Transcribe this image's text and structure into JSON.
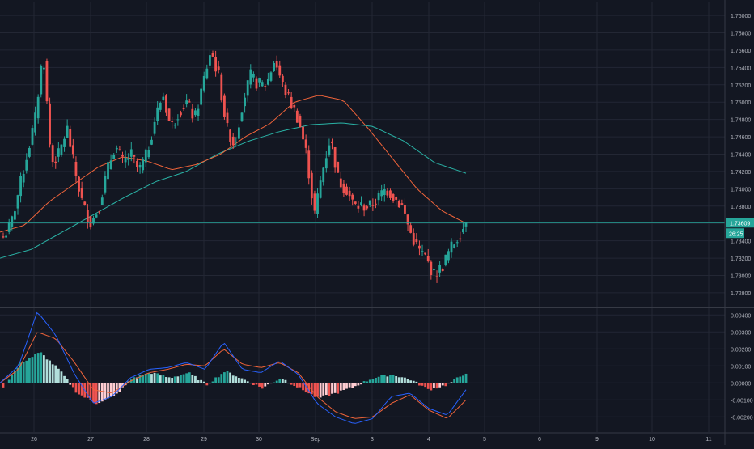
{
  "colors": {
    "background": "#131722",
    "grid": "#232734",
    "axis_text": "#b2b5be",
    "up": "#26a69a",
    "down": "#ef5350",
    "ma_fast": "#f0643a",
    "ma_slow": "#2ab3a6",
    "macd_line": "#2962ff",
    "signal_line": "#f0643a",
    "hist_pos": "#26a69a",
    "hist_pos_light": "#b2dfdb",
    "hist_neg": "#ef5350",
    "hist_neg_light": "#ffcdd2",
    "price_line": "#26a69a",
    "separator": "#363a45"
  },
  "chart_data": [
    {
      "type": "candlestick",
      "title": "",
      "ylim": [
        1.7265,
        1.7615
      ],
      "y_ticks": [
        "1.76000",
        "1.75800",
        "1.75600",
        "1.75400",
        "1.75200",
        "1.75000",
        "1.74800",
        "1.74600",
        "1.74400",
        "1.74200",
        "1.74000",
        "1.73800",
        "1.73600",
        "1.73400",
        "1.73200",
        "1.73000",
        "1.72800"
      ],
      "x_ticks": [
        "26",
        "27",
        "28",
        "29",
        "30",
        "Sep",
        "3",
        "4",
        "5",
        "6",
        "9",
        "10",
        "11"
      ],
      "current_price": "1.73609",
      "countdown": "26:25",
      "ohlc_anchors": [
        [
          1.7345,
          1.7344
        ],
        [
          1.735,
          1.736
        ],
        [
          1.738,
          1.74
        ],
        [
          1.742,
          1.744
        ],
        [
          1.744,
          1.748
        ],
        [
          1.75,
          1.756
        ],
        [
          1.747,
          1.743
        ],
        [
          1.746,
          1.744
        ],
        [
          1.745,
          1.747
        ],
        [
          1.744,
          1.742
        ],
        [
          1.74,
          1.738
        ],
        [
          1.738,
          1.736
        ],
        [
          1.736,
          1.738
        ],
        [
          1.739,
          1.742
        ],
        [
          1.742,
          1.745
        ],
        [
          1.744,
          1.743
        ],
        [
          1.743,
          1.744
        ],
        [
          1.743,
          1.742
        ],
        [
          1.743,
          1.744
        ],
        [
          1.744,
          1.748
        ],
        [
          1.748,
          1.751
        ],
        [
          1.749,
          1.747
        ],
        [
          1.748,
          1.749
        ],
        [
          1.749,
          1.75
        ],
        [
          1.749,
          1.748
        ],
        [
          1.75,
          1.752
        ],
        [
          1.753,
          1.756
        ],
        [
          1.757,
          1.753
        ],
        [
          1.75,
          1.747
        ],
        [
          1.747,
          1.745
        ],
        [
          1.747,
          1.75
        ],
        [
          1.751,
          1.753
        ],
        [
          1.752,
          1.752
        ],
        [
          1.75,
          1.752
        ],
        [
          1.753,
          1.755
        ],
        [
          1.753,
          1.752
        ],
        [
          1.752,
          1.75
        ],
        [
          1.751,
          1.748
        ],
        [
          1.747,
          1.744
        ],
        [
          1.743,
          1.737
        ],
        [
          1.74,
          1.742
        ],
        [
          1.745,
          1.746
        ],
        [
          1.743,
          1.741
        ],
        [
          1.742,
          1.74
        ],
        [
          1.74,
          1.738
        ],
        [
          1.738,
          1.738
        ],
        [
          1.739,
          1.738
        ],
        [
          1.738,
          1.739
        ],
        [
          1.739,
          1.74
        ],
        [
          1.741,
          1.739
        ],
        [
          1.739,
          1.738
        ],
        [
          1.737,
          1.735
        ],
        [
          1.735,
          1.733
        ],
        [
          1.734,
          1.732
        ],
        [
          1.732,
          1.73
        ],
        [
          1.73,
          1.731
        ],
        [
          1.732,
          1.733
        ],
        [
          1.733,
          1.7345
        ],
        [
          1.735,
          1.7361
        ]
      ],
      "ma_fast_anchors": [
        1.735,
        1.7358,
        1.7385,
        1.7405,
        1.7425,
        1.7437,
        1.7432,
        1.7422,
        1.7428,
        1.744,
        1.746,
        1.7475,
        1.75,
        1.7508,
        1.7502,
        1.747,
        1.7435,
        1.74,
        1.7375,
        1.736
      ],
      "ma_slow_anchors": [
        1.732,
        1.733,
        1.735,
        1.737,
        1.739,
        1.7408,
        1.742,
        1.744,
        1.7455,
        1.7466,
        1.7474,
        1.7476,
        1.7472,
        1.7455,
        1.743,
        1.7418
      ]
    },
    {
      "type": "macd",
      "ylim": [
        -0.0027,
        0.0043
      ],
      "y_ticks": [
        "0.00400",
        "0.00300",
        "0.00200",
        "0.00100",
        "0.00000",
        "-0.00100",
        "-0.00200"
      ],
      "macd_anchors": [
        0.0,
        0.001,
        0.0042,
        0.0028,
        0.0005,
        -0.0012,
        -0.0008,
        0.0003,
        0.0008,
        0.0009,
        0.0012,
        0.0008,
        0.0024,
        0.0008,
        0.0006,
        0.0013,
        0.0005,
        -0.0012,
        -0.002,
        -0.0024,
        -0.0021,
        -0.0008,
        -0.0006,
        -0.0015,
        -0.0019,
        -0.0004
      ],
      "signal_anchors": [
        0.0,
        0.0008,
        0.003,
        0.0026,
        0.0012,
        -0.0004,
        -0.0006,
        0.0001,
        0.0006,
        0.0008,
        0.0011,
        0.001,
        0.002,
        0.0011,
        0.0009,
        0.0012,
        0.0006,
        -0.0008,
        -0.0017,
        -0.0021,
        -0.002,
        -0.0012,
        -0.0007,
        -0.0016,
        -0.0021,
        -0.001
      ],
      "hist_anchors": [
        -0.0002,
        0.0012,
        0.0018,
        0.0008,
        -0.0006,
        -0.0012,
        -0.0008,
        0.0003,
        0.0006,
        0.0003,
        0.0006,
        -0.0001,
        0.0007,
        0.0002,
        -0.0003,
        0.0003,
        -0.0003,
        -0.0009,
        -0.0006,
        -0.0002,
        0.0003,
        0.0005,
        0.0002,
        -0.0004,
        -0.0001,
        0.0006
      ]
    }
  ]
}
